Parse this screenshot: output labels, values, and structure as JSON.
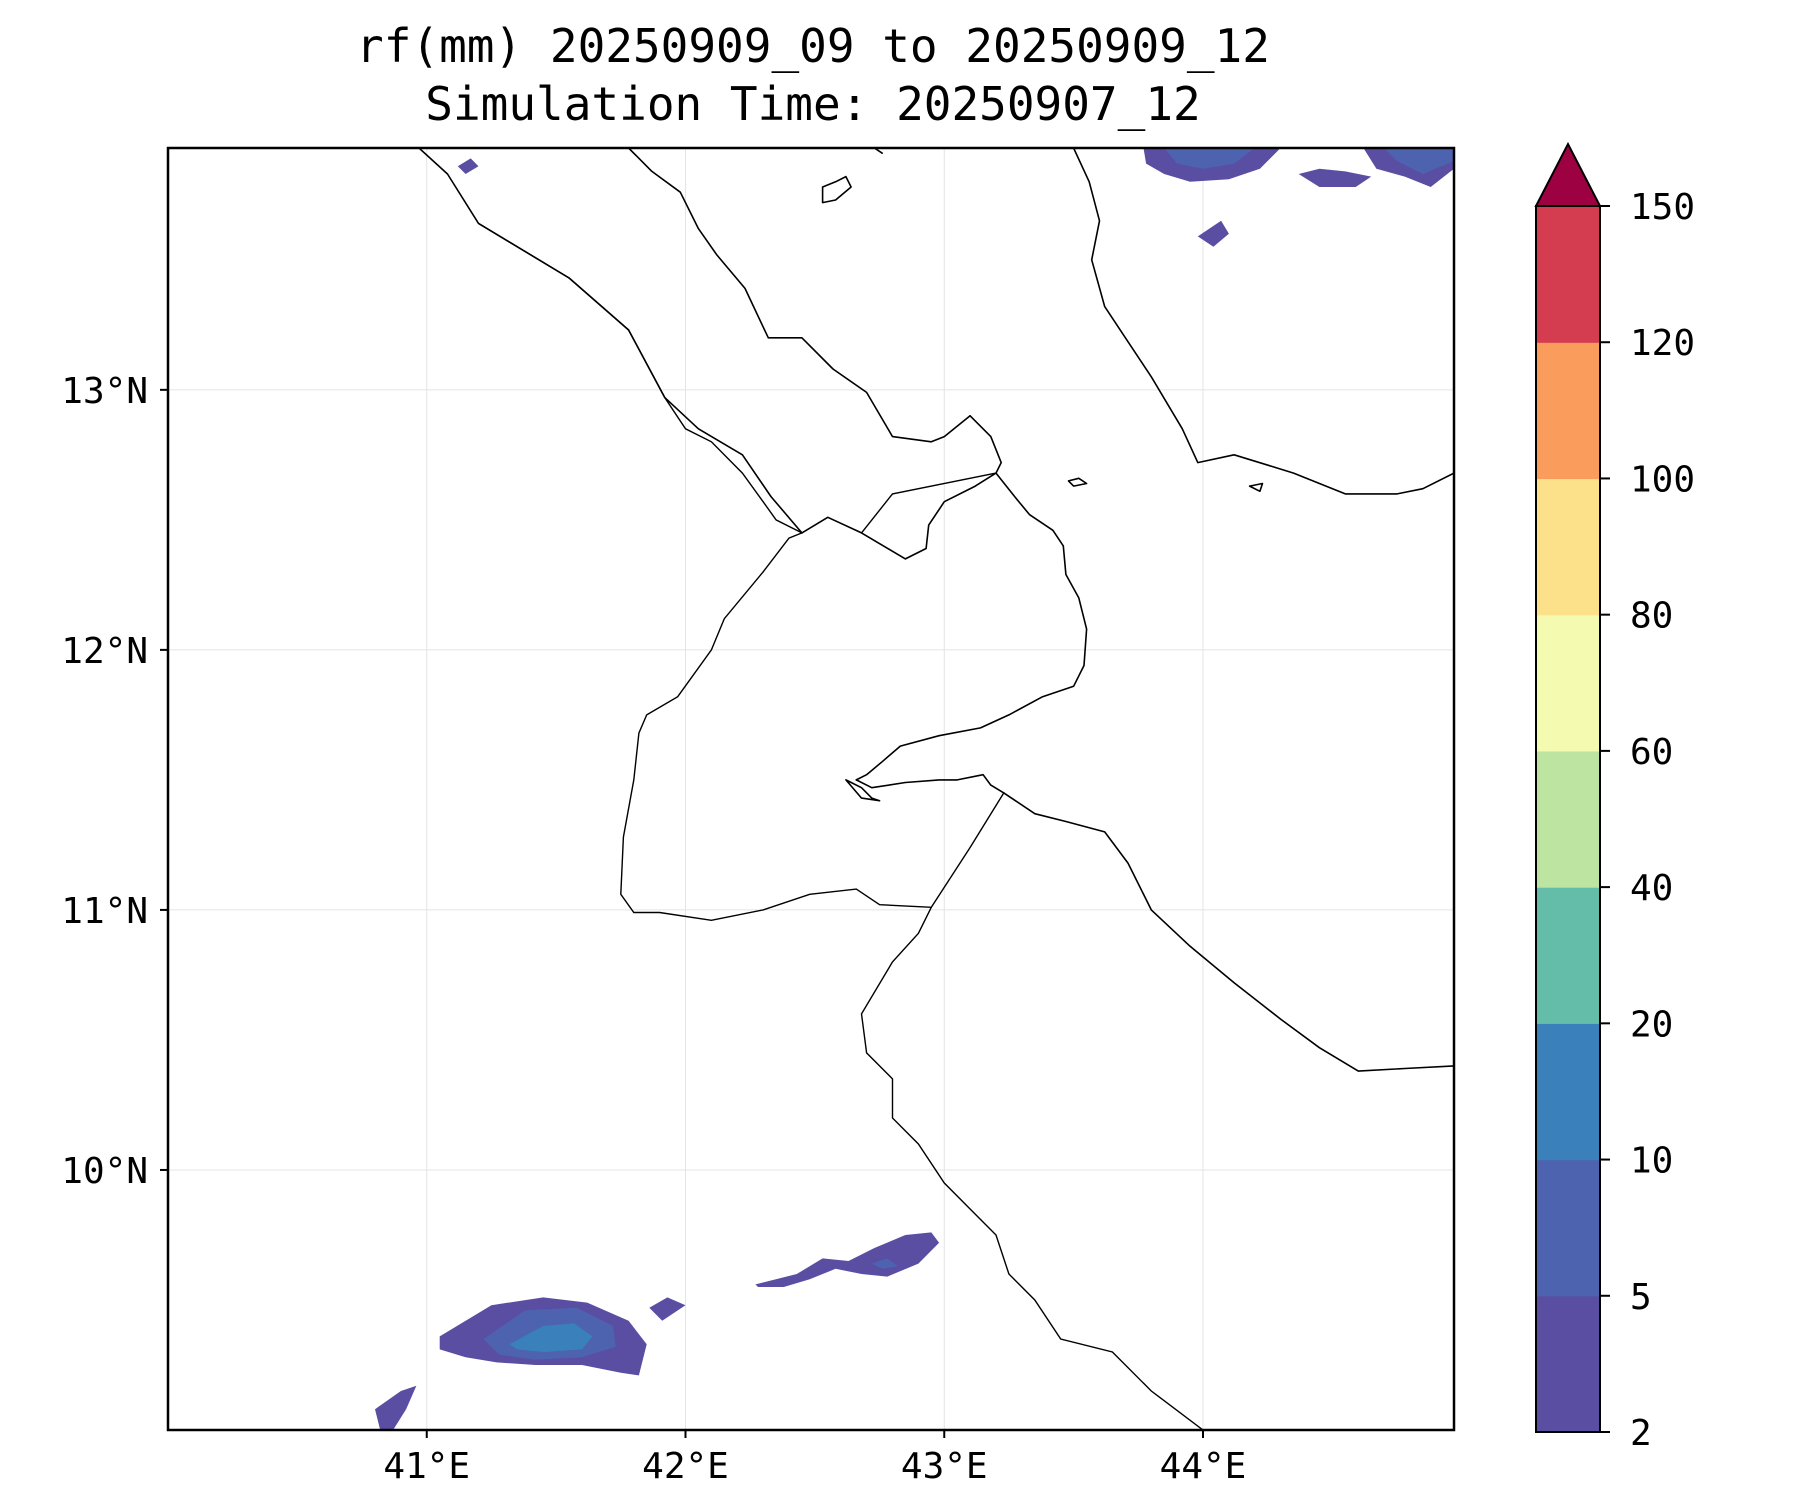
{
  "title": {
    "line1": "rf(mm) 20250909_09 to 20250909_12",
    "line2": "Simulation Time: 20250907_12"
  },
  "map": {
    "lon_range": [
      40.0,
      44.97
    ],
    "lat_range": [
      9.0,
      13.93
    ],
    "lon_ticks": [
      {
        "value": 41,
        "label": "41°E"
      },
      {
        "value": 42,
        "label": "42°E"
      },
      {
        "value": 43,
        "label": "43°E"
      },
      {
        "value": 44,
        "label": "44°E"
      }
    ],
    "lat_ticks": [
      {
        "value": 13,
        "label": "13°N"
      },
      {
        "value": 12,
        "label": "12°N"
      },
      {
        "value": 11,
        "label": "11°N"
      },
      {
        "value": 10,
        "label": "10°N"
      }
    ],
    "gridlines": true
  },
  "colorbar": {
    "extend": "max",
    "levels": [
      {
        "label": "2",
        "color": "#5a4ea3"
      },
      {
        "label": "5",
        "color": "#4d63b0"
      },
      {
        "label": "10",
        "color": "#3a80ba"
      },
      {
        "label": "20",
        "color": "#64bda9"
      },
      {
        "label": "40",
        "color": "#bde4a0"
      },
      {
        "label": "60",
        "color": "#f4fab0"
      },
      {
        "label": "80",
        "color": "#fde08a"
      },
      {
        "label": "100",
        "color": "#f99c5c"
      },
      {
        "label": "120",
        "color": "#d43d4f"
      },
      {
        "label": "150",
        "color": ""
      }
    ],
    "extend_color": "#9e0142"
  },
  "rain_cells": [
    {
      "level": "2-5",
      "polygon": [
        [
          41.05,
          9.36
        ],
        [
          41.25,
          9.48
        ],
        [
          41.45,
          9.51
        ],
        [
          41.62,
          9.49
        ],
        [
          41.78,
          9.42
        ],
        [
          41.85,
          9.33
        ],
        [
          41.82,
          9.21
        ],
        [
          41.75,
          9.22
        ],
        [
          41.6,
          9.25
        ],
        [
          41.42,
          9.25
        ],
        [
          41.27,
          9.26
        ],
        [
          41.15,
          9.28
        ],
        [
          41.05,
          9.31
        ]
      ]
    },
    {
      "level": "5-10",
      "polygon": [
        [
          41.22,
          9.35
        ],
        [
          41.38,
          9.46
        ],
        [
          41.58,
          9.47
        ],
        [
          41.72,
          9.4
        ],
        [
          41.73,
          9.32
        ],
        [
          41.6,
          9.28
        ],
        [
          41.42,
          9.27
        ],
        [
          41.28,
          9.29
        ]
      ]
    },
    {
      "level": "10-20",
      "polygon": [
        [
          41.32,
          9.33
        ],
        [
          41.45,
          9.4
        ],
        [
          41.57,
          9.41
        ],
        [
          41.64,
          9.36
        ],
        [
          41.6,
          9.31
        ],
        [
          41.45,
          9.3
        ],
        [
          41.35,
          9.31
        ]
      ]
    },
    {
      "level": "2-5",
      "polygon": [
        [
          40.8,
          9.08
        ],
        [
          40.9,
          9.15
        ],
        [
          40.96,
          9.17
        ],
        [
          40.92,
          9.08
        ],
        [
          40.87,
          9.0
        ],
        [
          40.82,
          9.0
        ]
      ]
    },
    {
      "level": "2-5",
      "polygon": [
        [
          41.86,
          9.47
        ],
        [
          41.93,
          9.51
        ],
        [
          42.0,
          9.48
        ],
        [
          41.91,
          9.42
        ]
      ]
    },
    {
      "level": "2-5",
      "polygon": [
        [
          42.27,
          9.56
        ],
        [
          42.43,
          9.6
        ],
        [
          42.53,
          9.66
        ],
        [
          42.63,
          9.65
        ],
        [
          42.73,
          9.7
        ],
        [
          42.85,
          9.75
        ],
        [
          42.95,
          9.76
        ],
        [
          42.98,
          9.72
        ],
        [
          42.9,
          9.64
        ],
        [
          42.78,
          9.59
        ],
        [
          42.68,
          9.6
        ],
        [
          42.58,
          9.62
        ],
        [
          42.48,
          9.58
        ],
        [
          42.38,
          9.55
        ],
        [
          42.28,
          9.55
        ]
      ]
    },
    {
      "level": "5-10",
      "polygon": [
        [
          42.72,
          9.64
        ],
        [
          42.78,
          9.66
        ],
        [
          42.82,
          9.63
        ],
        [
          42.76,
          9.62
        ]
      ]
    },
    {
      "level": "2-5",
      "polygon": [
        [
          43.77,
          13.93
        ],
        [
          44.3,
          13.93
        ],
        [
          44.22,
          13.85
        ],
        [
          44.1,
          13.81
        ],
        [
          43.95,
          13.8
        ],
        [
          43.85,
          13.83
        ],
        [
          43.78,
          13.87
        ]
      ]
    },
    {
      "level": "5-10",
      "polygon": [
        [
          43.85,
          13.93
        ],
        [
          44.2,
          13.93
        ],
        [
          44.12,
          13.87
        ],
        [
          44.0,
          13.85
        ],
        [
          43.9,
          13.87
        ]
      ]
    },
    {
      "level": "2-5",
      "polygon": [
        [
          44.37,
          13.83
        ],
        [
          44.45,
          13.85
        ],
        [
          44.55,
          13.84
        ],
        [
          44.65,
          13.82
        ],
        [
          44.59,
          13.78
        ],
        [
          44.45,
          13.78
        ]
      ]
    },
    {
      "level": "2-5",
      "polygon": [
        [
          44.07,
          13.65
        ],
        [
          44.1,
          13.6
        ],
        [
          44.04,
          13.55
        ],
        [
          43.98,
          13.59
        ]
      ]
    },
    {
      "level": "2-5",
      "polygon": [
        [
          44.62,
          13.93
        ],
        [
          44.97,
          13.93
        ],
        [
          44.97,
          13.85
        ],
        [
          44.88,
          13.78
        ],
        [
          44.78,
          13.82
        ],
        [
          44.67,
          13.85
        ]
      ]
    },
    {
      "level": "5-10",
      "polygon": [
        [
          44.7,
          13.93
        ],
        [
          44.97,
          13.93
        ],
        [
          44.97,
          13.88
        ],
        [
          44.85,
          13.83
        ],
        [
          44.75,
          13.88
        ]
      ]
    },
    {
      "level": "2-5",
      "polygon": [
        [
          41.12,
          13.86
        ],
        [
          41.17,
          13.89
        ],
        [
          41.2,
          13.86
        ],
        [
          41.15,
          13.83
        ]
      ]
    }
  ],
  "coastlines": [
    [
      [
        40.97,
        13.93
      ],
      [
        41.08,
        13.83
      ],
      [
        41.2,
        13.64
      ],
      [
        41.55,
        13.43
      ],
      [
        41.78,
        13.23
      ],
      [
        41.92,
        12.97
      ],
      [
        42.05,
        12.85
      ],
      [
        42.22,
        12.75
      ],
      [
        42.33,
        12.59
      ],
      [
        42.45,
        12.45
      ]
    ],
    [
      [
        42.45,
        12.45
      ],
      [
        42.55,
        12.51
      ],
      [
        42.68,
        12.45
      ],
      [
        42.85,
        12.35
      ],
      [
        42.93,
        12.39
      ],
      [
        42.94,
        12.48
      ],
      [
        43.0,
        12.57
      ],
      [
        43.12,
        12.63
      ],
      [
        43.2,
        12.68
      ]
    ],
    [
      [
        43.2,
        12.68
      ],
      [
        43.28,
        12.58
      ],
      [
        43.33,
        12.52
      ],
      [
        43.42,
        12.46
      ],
      [
        43.46,
        12.4
      ],
      [
        43.47,
        12.29
      ],
      [
        43.52,
        12.2
      ],
      [
        43.55,
        12.08
      ],
      [
        43.54,
        11.94
      ],
      [
        43.5,
        11.86
      ],
      [
        43.38,
        11.82
      ],
      [
        43.25,
        11.75
      ],
      [
        43.14,
        11.7
      ],
      [
        42.98,
        11.67
      ],
      [
        42.83,
        11.63
      ],
      [
        42.76,
        11.57
      ],
      [
        42.7,
        11.52
      ],
      [
        42.66,
        11.5
      ]
    ],
    [
      [
        42.66,
        11.5
      ],
      [
        42.72,
        11.47
      ],
      [
        42.85,
        11.49
      ],
      [
        42.98,
        11.5
      ],
      [
        43.05,
        11.5
      ],
      [
        43.15,
        11.52
      ],
      [
        43.18,
        11.48
      ],
      [
        43.23,
        11.45
      ]
    ],
    [
      [
        43.23,
        11.45
      ],
      [
        43.35,
        11.37
      ],
      [
        43.47,
        11.34
      ],
      [
        43.62,
        11.3
      ],
      [
        43.71,
        11.18
      ],
      [
        43.8,
        11.0
      ],
      [
        43.95,
        10.86
      ],
      [
        44.12,
        10.72
      ],
      [
        44.3,
        10.58
      ],
      [
        44.45,
        10.47
      ],
      [
        44.6,
        10.38
      ],
      [
        44.78,
        10.39
      ],
      [
        44.97,
        10.4
      ]
    ],
    [
      [
        42.62,
        11.5
      ],
      [
        42.68,
        11.47
      ],
      [
        42.72,
        11.43
      ],
      [
        42.75,
        11.42
      ],
      [
        42.68,
        11.43
      ],
      [
        42.62,
        11.5
      ]
    ],
    [
      [
        41.78,
        13.93
      ],
      [
        41.87,
        13.84
      ],
      [
        41.98,
        13.76
      ],
      [
        42.05,
        13.62
      ],
      [
        42.12,
        13.52
      ],
      [
        42.23,
        13.39
      ],
      [
        42.32,
        13.2
      ],
      [
        42.45,
        13.2
      ],
      [
        42.57,
        13.08
      ],
      [
        42.7,
        12.99
      ],
      [
        42.8,
        12.82
      ],
      [
        42.95,
        12.8
      ],
      [
        43.0,
        12.82
      ],
      [
        43.1,
        12.9
      ]
    ],
    [
      [
        43.1,
        12.9
      ],
      [
        43.18,
        12.82
      ],
      [
        43.22,
        12.72
      ],
      [
        43.2,
        12.68
      ]
    ],
    [
      [
        43.5,
        13.93
      ],
      [
        43.56,
        13.8
      ],
      [
        43.6,
        13.65
      ],
      [
        43.57,
        13.5
      ],
      [
        43.62,
        13.32
      ],
      [
        43.7,
        13.2
      ],
      [
        43.8,
        13.05
      ],
      [
        43.92,
        12.85
      ],
      [
        43.98,
        12.72
      ],
      [
        44.12,
        12.75
      ],
      [
        44.35,
        12.68
      ],
      [
        44.55,
        12.6
      ],
      [
        44.75,
        12.6
      ],
      [
        44.85,
        12.62
      ],
      [
        44.97,
        12.68
      ]
    ],
    [
      [
        42.73,
        13.93
      ],
      [
        42.76,
        13.91
      ]
    ],
    [
      [
        42.53,
        13.78
      ],
      [
        42.58,
        13.8
      ],
      [
        42.62,
        13.82
      ],
      [
        42.64,
        13.78
      ],
      [
        42.58,
        13.73
      ],
      [
        42.53,
        13.72
      ],
      [
        42.53,
        13.78
      ]
    ],
    [
      [
        43.48,
        12.65
      ],
      [
        43.52,
        12.66
      ],
      [
        43.55,
        12.64
      ],
      [
        43.5,
        12.63
      ],
      [
        43.48,
        12.65
      ]
    ],
    [
      [
        44.18,
        12.63
      ],
      [
        44.23,
        12.64
      ],
      [
        44.22,
        12.61
      ],
      [
        44.18,
        12.63
      ]
    ]
  ],
  "borders": [
    [
      [
        42.45,
        12.45
      ],
      [
        42.35,
        12.5
      ],
      [
        42.3,
        12.57
      ],
      [
        42.22,
        12.68
      ],
      [
        42.1,
        12.8
      ],
      [
        42.0,
        12.85
      ],
      [
        41.92,
        12.97
      ],
      [
        41.78,
        13.23
      ],
      [
        41.55,
        13.43
      ],
      [
        41.2,
        13.64
      ]
    ],
    [
      [
        43.23,
        11.45
      ],
      [
        43.1,
        11.24
      ],
      [
        42.95,
        11.01
      ],
      [
        42.75,
        11.02
      ],
      [
        42.66,
        11.08
      ],
      [
        42.48,
        11.06
      ],
      [
        42.3,
        11.0
      ],
      [
        42.1,
        10.96
      ],
      [
        41.9,
        10.99
      ],
      [
        41.8,
        10.99
      ],
      [
        41.75,
        11.06
      ],
      [
        41.76,
        11.28
      ],
      [
        41.8,
        11.5
      ],
      [
        41.82,
        11.68
      ],
      [
        41.85,
        11.75
      ],
      [
        41.97,
        11.82
      ],
      [
        42.1,
        12.0
      ],
      [
        42.15,
        12.12
      ],
      [
        42.3,
        12.3
      ],
      [
        42.4,
        12.43
      ],
      [
        42.45,
        12.45
      ]
    ],
    [
      [
        43.2,
        12.68
      ],
      [
        42.8,
        12.6
      ],
      [
        42.68,
        12.45
      ]
    ],
    [
      [
        42.95,
        11.01
      ],
      [
        42.9,
        10.91
      ],
      [
        42.8,
        10.8
      ],
      [
        42.68,
        10.6
      ],
      [
        42.7,
        10.45
      ],
      [
        42.8,
        10.35
      ],
      [
        42.8,
        10.2
      ],
      [
        42.9,
        10.1
      ],
      [
        43.0,
        9.95
      ],
      [
        43.1,
        9.85
      ],
      [
        43.2,
        9.75
      ],
      [
        43.25,
        9.6
      ],
      [
        43.35,
        9.5
      ],
      [
        43.45,
        9.35
      ],
      [
        43.65,
        9.3
      ],
      [
        43.8,
        9.15
      ],
      [
        44.0,
        9.0
      ]
    ]
  ]
}
